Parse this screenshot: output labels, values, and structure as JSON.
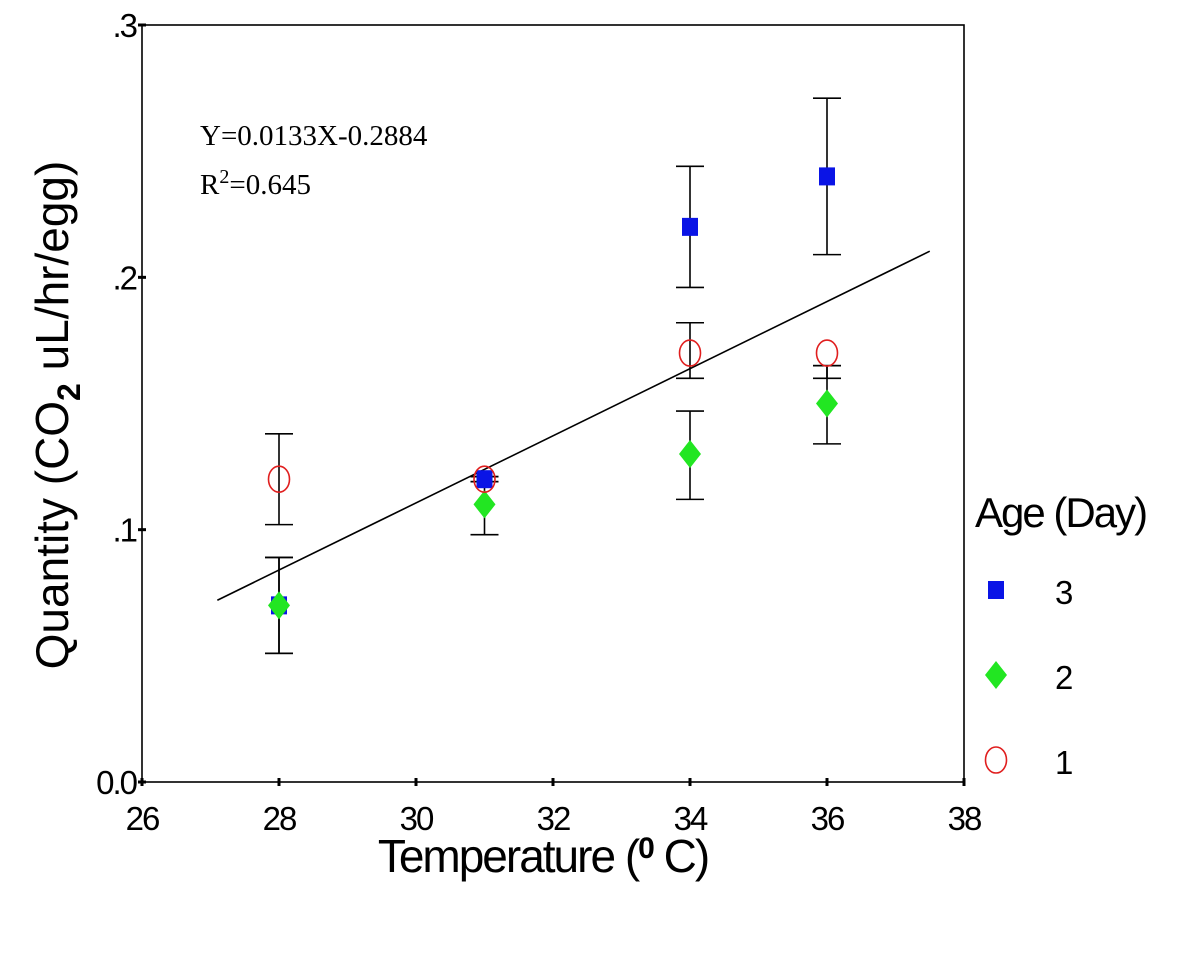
{
  "chart_data": {
    "type": "scatter",
    "title": "",
    "xlabel": "Temperature (",
    "xlabel_super": "0",
    "xlabel_tail": " C)",
    "ylabel": "Quantity (CO",
    "ylabel_sub": "2",
    "ylabel_tail": "  uL/hr/egg)",
    "xlim": [
      26,
      38
    ],
    "ylim": [
      0,
      0.3
    ],
    "x_ticks": [
      26,
      28,
      30,
      32,
      34,
      36,
      38
    ],
    "x_tick_labels": [
      "26",
      "28",
      "30",
      "32",
      "34",
      "36",
      "38"
    ],
    "y_ticks": [
      0,
      0.1,
      0.2,
      0.3
    ],
    "y_tick_labels": [
      "0.0",
      ".1",
      ".2",
      ".3"
    ],
    "grid": false,
    "legend_title": "Age (Day)",
    "legend_position": "right",
    "series": [
      {
        "name": "3",
        "marker": "square",
        "color": "#0a14e6",
        "points": [
          {
            "x": 28,
            "y": 0.07,
            "err_lo": 0.051,
            "err_hi": 0.089
          },
          {
            "x": 31,
            "y": 0.12,
            "err_lo": 0.119,
            "err_hi": 0.121
          },
          {
            "x": 34,
            "y": 0.22,
            "err_lo": 0.196,
            "err_hi": 0.244
          },
          {
            "x": 36,
            "y": 0.24,
            "err_lo": 0.209,
            "err_hi": 0.271
          }
        ]
      },
      {
        "name": "2",
        "marker": "diamond",
        "color": "#22e622",
        "points": [
          {
            "x": 28,
            "y": 0.07,
            "err_lo": 0.051,
            "err_hi": 0.089
          },
          {
            "x": 31,
            "y": 0.11,
            "err_lo": 0.098,
            "err_hi": 0.121
          },
          {
            "x": 34,
            "y": 0.13,
            "err_lo": 0.112,
            "err_hi": 0.147
          },
          {
            "x": 36,
            "y": 0.15,
            "err_lo": 0.134,
            "err_hi": 0.165
          }
        ]
      },
      {
        "name": "1",
        "marker": "open-circle",
        "color": "#e01e1e",
        "points": [
          {
            "x": 28,
            "y": 0.12,
            "err_lo": 0.102,
            "err_hi": 0.138
          },
          {
            "x": 31,
            "y": 0.12,
            "err_lo": 0.119,
            "err_hi": 0.121
          },
          {
            "x": 34,
            "y": 0.17,
            "err_lo": 0.16,
            "err_hi": 0.182
          },
          {
            "x": 36,
            "y": 0.17,
            "err_lo": 0.16,
            "err_hi": 0.165
          }
        ]
      }
    ],
    "fit_line": {
      "x_start": 27.1,
      "x_end": 37.5,
      "slope": 0.0133,
      "intercept": -0.2884
    },
    "annotations": {
      "equation": "Y=0.0133X-0.2884",
      "r2_prefix": "R",
      "r2_super": "2",
      "r2_value": "=0.645"
    }
  }
}
